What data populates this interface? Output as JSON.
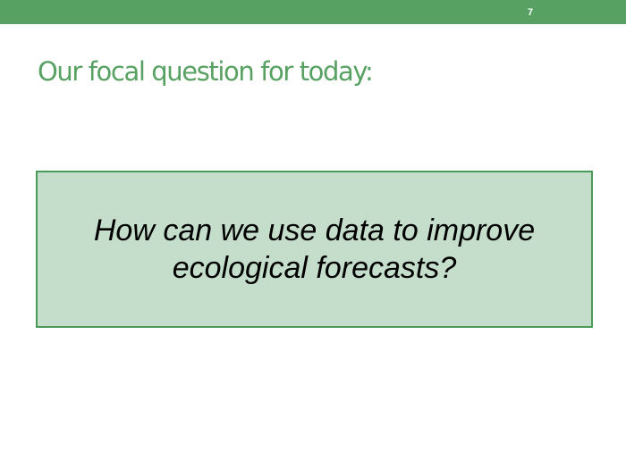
{
  "slide": {
    "number": "7",
    "title": "Our focal question for today:",
    "question": "How can we use data to improve ecological forecasts?"
  },
  "colors": {
    "accent": "#57a262",
    "box_fill": "#c5decb",
    "box_border": "#4c9a58"
  }
}
